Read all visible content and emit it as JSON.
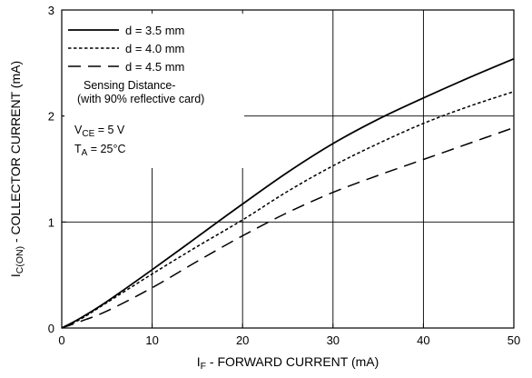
{
  "chart_data": {
    "type": "line",
    "title": "",
    "xlabel": {
      "main": "I",
      "sub": "F",
      "rest": " - FORWARD CURRENT (mA)"
    },
    "ylabel": {
      "main": "I",
      "sub": "C(ON)",
      "rest": " - COLLECTOR CURRENT (mA)"
    },
    "xlim": [
      0,
      50
    ],
    "ylim": [
      0,
      3
    ],
    "xticks": [
      0,
      10,
      20,
      30,
      40,
      50
    ],
    "yticks": [
      0,
      1,
      2,
      3
    ],
    "xtick_labels": [
      "0",
      "10",
      "20",
      "30",
      "40",
      "50"
    ],
    "ytick_labels": [
      "0",
      "1",
      "2",
      "3"
    ],
    "grid": true,
    "legend_position": "top-left",
    "annotations": {
      "sensing_line1": "Sensing Distance-",
      "sensing_line2": "(with 90% reflective card)",
      "vce": {
        "main": "V",
        "sub": "CE",
        "rest": " = 5 V"
      },
      "ta": {
        "main": "T",
        "sub": "A",
        "rest": " = 25°C"
      }
    },
    "series": [
      {
        "name": "d = 3.5 mm",
        "style": "solid",
        "x": [
          0,
          2,
          5,
          10,
          15,
          20,
          25,
          30,
          35,
          40,
          45,
          50
        ],
        "y": [
          0,
          0.09,
          0.25,
          0.55,
          0.86,
          1.17,
          1.47,
          1.74,
          1.97,
          2.17,
          2.36,
          2.54
        ]
      },
      {
        "name": "d = 4.0 mm",
        "style": "dotted",
        "x": [
          0,
          2,
          5,
          10,
          15,
          20,
          25,
          30,
          35,
          40,
          45,
          50
        ],
        "y": [
          0,
          0.08,
          0.24,
          0.51,
          0.77,
          1.02,
          1.29,
          1.53,
          1.74,
          1.93,
          2.09,
          2.23
        ]
      },
      {
        "name": "d = 4.5 mm",
        "style": "dashed",
        "x": [
          0,
          2,
          5,
          10,
          15,
          20,
          25,
          30,
          35,
          40,
          45,
          50
        ],
        "y": [
          0,
          0.06,
          0.16,
          0.38,
          0.63,
          0.87,
          1.09,
          1.28,
          1.44,
          1.59,
          1.74,
          1.89
        ]
      }
    ]
  }
}
